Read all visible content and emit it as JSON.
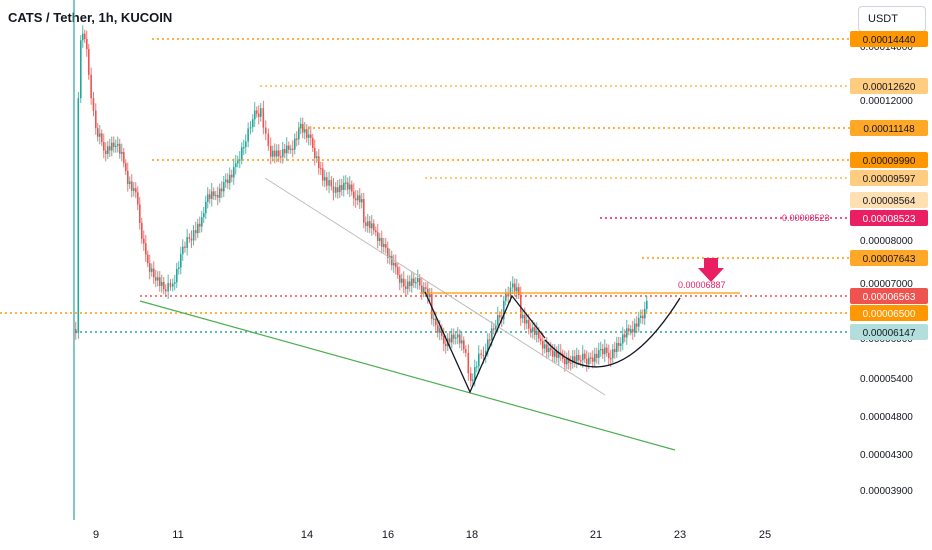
{
  "header": {
    "symbol_title": "CATS / Tether, 1h, KUCOIN",
    "currency_button": "USDT"
  },
  "chart_data": {
    "type": "candlestick",
    "x_ticks": [
      "9",
      "11",
      "14",
      "16",
      "18",
      "21",
      "23",
      "25"
    ],
    "y_ticks": [
      "0.00014000",
      "0.00012000",
      "0.00008000",
      "0.00007000",
      "0.00006000",
      "0.00005400",
      "0.00004800",
      "0.00004300",
      "0.00003900"
    ],
    "price_tags": [
      {
        "label": "0.00014440",
        "price": 0.0001444,
        "bg": "#ff9800",
        "fg": "#131722",
        "line": "#ff9800",
        "x_from": 152
      },
      {
        "label": "0.00012620",
        "price": 0.0001262,
        "bg": "#ffcc80",
        "fg": "#131722",
        "line": "#ffb74d",
        "x_from": 260
      },
      {
        "label": "0.00011148",
        "price": 0.00011148,
        "bg": "#ffa726",
        "fg": "#131722",
        "line": "#ff9800",
        "x_from": 298
      },
      {
        "label": "0.00009990",
        "price": 9.99e-05,
        "bg": "#ff9800",
        "fg": "#131722",
        "line": "#ff9800",
        "x_from": 152
      },
      {
        "label": "0.00009597",
        "price": 9.597e-05,
        "bg": "#ffcc80",
        "fg": "#131722",
        "line": "#ffb74d",
        "x_from": 425
      },
      {
        "label": "0.00008564",
        "price": 8.564e-05,
        "bg": "#ffe0b2",
        "fg": "#131722",
        "line": null,
        "x_from": 0
      },
      {
        "label": "0.00008523",
        "price": 8.523e-05,
        "bg": "#e91e63",
        "fg": "#ffffff",
        "line": "#e91e63",
        "x_from": 600
      },
      {
        "label": "0.00007643",
        "price": 7.643e-05,
        "bg": "#ffa726",
        "fg": "#131722",
        "line": "#ff9800",
        "x_from": 642
      },
      {
        "label": "0.00006563",
        "price": 6.563e-05,
        "bg": "#ef5350",
        "fg": "#ffffff",
        "line": "#ef5350",
        "x_from": 140
      },
      {
        "label": "0.00006500",
        "price": 6.5e-05,
        "bg": "#ff9800",
        "fg": "#ffffff",
        "line": "#ff9800",
        "x_from": 0
      },
      {
        "label": "0.00006147",
        "price": 6.147e-05,
        "bg": "#b2dfdb",
        "fg": "#131722",
        "line": "#26a69a",
        "x_from": 75
      }
    ],
    "annotations": {
      "resistance_text": "0.00008523",
      "breakout_text": "0.00006887"
    },
    "colors": {
      "up": "#26a69a",
      "down": "#ef5350",
      "support": "#4caf50",
      "trend": "#9e9e9e",
      "pattern": "#131722",
      "neck": "#ff9800",
      "arrow": "#e91e63"
    }
  }
}
